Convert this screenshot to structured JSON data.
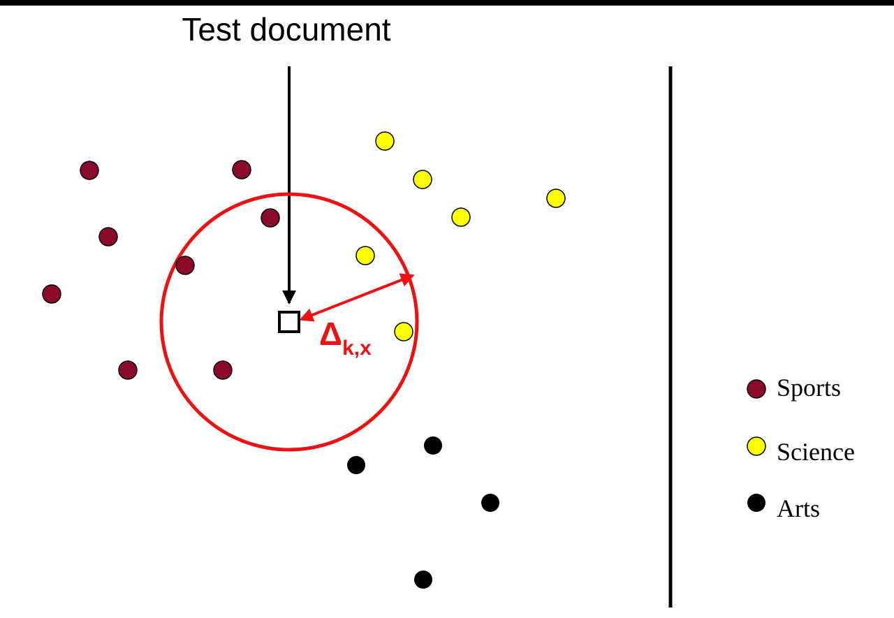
{
  "title": "Test document",
  "radius_label": {
    "symbol": "Δ",
    "subscript": "k,x"
  },
  "colors": {
    "sports": "#8b0a2a",
    "science": "#ffff00",
    "arts": "#000000",
    "neighborhood": "#ee1111",
    "ink": "#000000"
  },
  "legend": [
    {
      "label": "Sports",
      "class": "sports"
    },
    {
      "label": "Science",
      "class": "science"
    },
    {
      "label": "Arts",
      "class": "arts"
    }
  ]
}
